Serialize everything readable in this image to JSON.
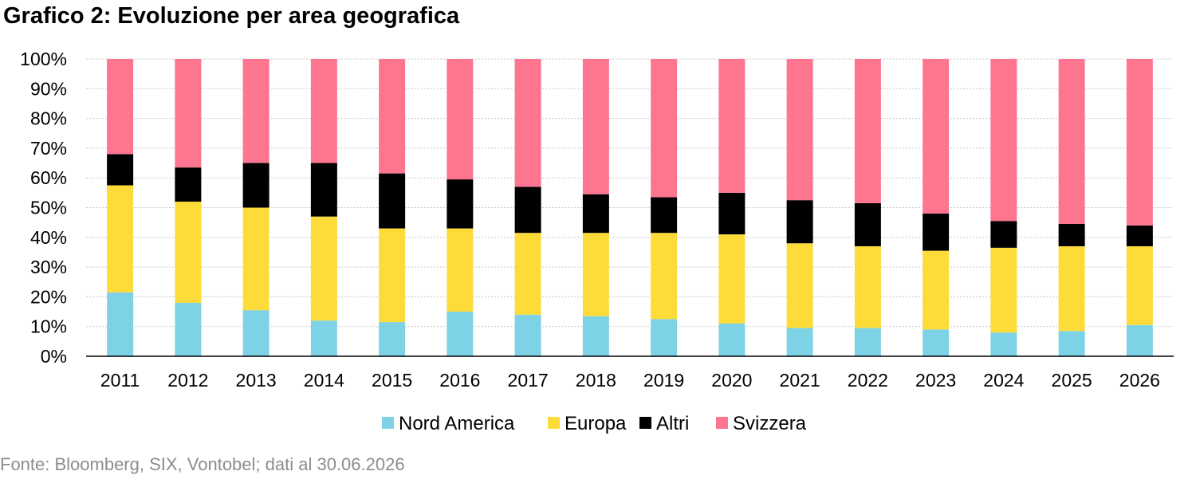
{
  "title": "Grafico 2: Evoluzione per area geografica",
  "source": "Fonte: Bloomberg, SIX, Vontobel; dati al 30.06.2026",
  "colors": {
    "Nord America": "#7dd3e5",
    "Europa": "#fddc3a",
    "Altri": "#000000",
    "Svizzera": "#fe7590"
  },
  "chart_data": {
    "type": "bar",
    "stacked": true,
    "categories": [
      "2011",
      "2012",
      "2013",
      "2014",
      "2015",
      "2016",
      "2017",
      "2018",
      "2019",
      "2020",
      "2021",
      "2022",
      "2023",
      "2024",
      "2025",
      "2026"
    ],
    "series": [
      {
        "name": "Nord America",
        "values": [
          21.5,
          18,
          15.5,
          12,
          11.5,
          15,
          14,
          13.5,
          12.5,
          11,
          9.5,
          9.5,
          9,
          8,
          8.5,
          10.5
        ]
      },
      {
        "name": "Europa",
        "values": [
          36,
          34,
          34.5,
          35,
          31.5,
          28,
          27.5,
          28,
          29,
          30,
          28.5,
          27.5,
          26.5,
          28.5,
          28.5,
          26.5
        ]
      },
      {
        "name": "Altri",
        "values": [
          10.5,
          11.5,
          15,
          18,
          18.5,
          16.5,
          15.5,
          13,
          12,
          14,
          14.5,
          14.5,
          12.5,
          9,
          7.5,
          7
        ]
      },
      {
        "name": "Svizzera",
        "values": [
          32,
          36.5,
          35,
          35,
          38.5,
          40.5,
          43,
          45.5,
          46.5,
          45,
          47.5,
          48.5,
          52,
          54.5,
          55.5,
          56
        ]
      }
    ],
    "ylim": [
      0,
      100
    ],
    "yticks": [
      "0%",
      "10%",
      "20%",
      "30%",
      "40%",
      "50%",
      "60%",
      "70%",
      "80%",
      "90%",
      "100%"
    ],
    "grid": true,
    "legend": "bottom"
  }
}
